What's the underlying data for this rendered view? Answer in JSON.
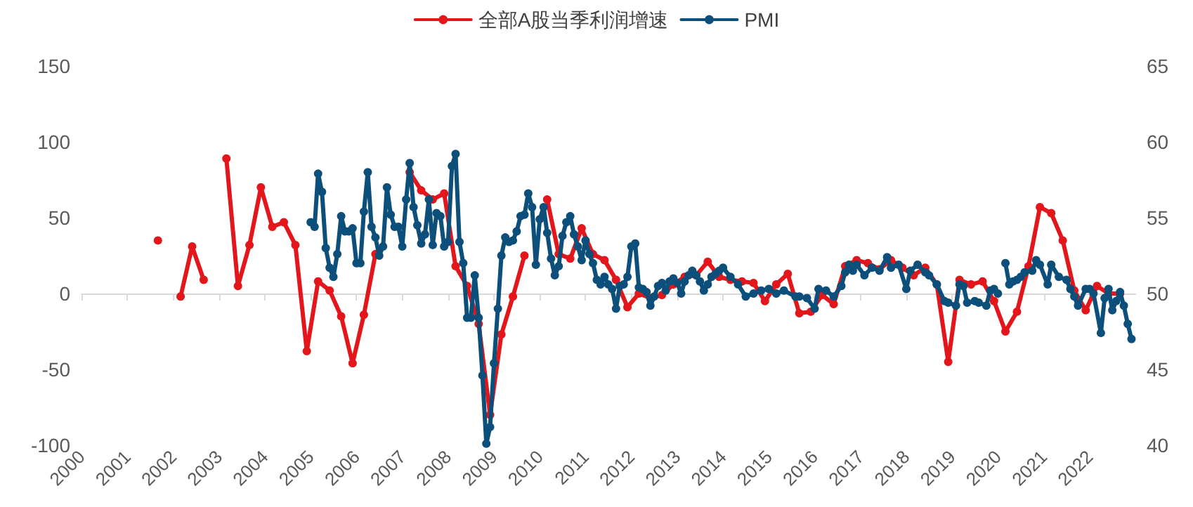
{
  "chart_data": {
    "type": "line",
    "legend": "top",
    "marker": "circle",
    "line_style": "solid",
    "xlim": [
      "2000",
      "2023"
    ],
    "xticks": [
      "2000",
      "2001",
      "2002",
      "2003",
      "2004",
      "2005",
      "2006",
      "2007",
      "2008",
      "2009",
      "2010",
      "2011",
      "2012",
      "2013",
      "2014",
      "2015",
      "2016",
      "2017",
      "2018",
      "2019",
      "2020",
      "2021",
      "2022"
    ],
    "ylim": [
      -100,
      150
    ],
    "yticks": [
      -100,
      -50,
      0,
      50,
      100,
      150
    ],
    "y2lim": [
      40,
      65
    ],
    "y2ticks": [
      40,
      45,
      50,
      55,
      60,
      65
    ],
    "series": [
      {
        "name": "全部A股当季利润增速",
        "color": "#e3161c",
        "x": [
          "2001-09",
          "2001-12",
          "2002-03",
          "2002-06",
          "2002-09",
          "2002-12",
          "2003-03",
          "2003-06",
          "2003-09",
          "2003-12",
          "2004-03",
          "2004-06",
          "2004-09",
          "2004-12",
          "2005-03",
          "2005-06",
          "2005-09",
          "2005-12",
          "2006-03",
          "2006-06",
          "2006-09",
          "2006-12",
          "2007-03",
          "2007-06",
          "2007-09",
          "2007-12",
          "2008-03",
          "2008-06",
          "2008-09",
          "2008-12",
          "2009-03",
          "2009-06",
          "2009-09",
          "2009-12",
          "2010-03",
          "2010-06",
          "2010-09",
          "2010-12",
          "2011-03",
          "2011-06",
          "2011-09",
          "2011-12",
          "2012-03",
          "2012-06",
          "2012-09",
          "2012-12",
          "2013-03",
          "2013-06",
          "2013-09",
          "2013-12",
          "2014-03",
          "2014-06",
          "2014-09",
          "2014-12",
          "2015-03",
          "2015-06",
          "2015-09",
          "2015-12",
          "2016-03",
          "2016-06",
          "2016-09",
          "2016-12",
          "2017-03",
          "2017-06",
          "2017-09",
          "2017-12",
          "2018-03",
          "2018-06",
          "2018-09",
          "2018-12",
          "2019-03",
          "2019-06",
          "2019-09",
          "2019-12",
          "2020-03",
          "2020-06",
          "2020-09",
          "2020-12",
          "2021-03",
          "2021-06",
          "2021-09",
          "2021-12",
          "2022-03",
          "2022-06",
          "2022-09"
        ],
        "values": [
          35,
          null,
          -2,
          31,
          9,
          null,
          89,
          5,
          32,
          70,
          44,
          47,
          32,
          -38,
          8,
          2,
          -15,
          -46,
          -14,
          26,
          null,
          null,
          80,
          68,
          62,
          66,
          18,
          5,
          -20,
          -80,
          -27,
          -2,
          25,
          null,
          62,
          26,
          23,
          43,
          26,
          22,
          9,
          -9,
          0,
          -3,
          -1,
          6,
          11,
          12,
          21,
          11,
          9,
          8,
          7,
          -5,
          6,
          13,
          -13,
          -12,
          -1,
          -7,
          18,
          22,
          20,
          16,
          22,
          17,
          12,
          17,
          6,
          -45,
          9,
          6,
          8,
          -5,
          -25,
          -12,
          18,
          57,
          53,
          35,
          2,
          -11,
          5,
          0,
          0
        ]
      },
      {
        "name": "PMI",
        "color": "#0d4f7b",
        "axis": "y2",
        "x": [
          "2005-01",
          "2005-02",
          "2005-03",
          "2005-04",
          "2005-05",
          "2005-06",
          "2005-07",
          "2005-08",
          "2005-09",
          "2005-10",
          "2005-11",
          "2005-12",
          "2006-01",
          "2006-02",
          "2006-03",
          "2006-04",
          "2006-05",
          "2006-06",
          "2006-07",
          "2006-08",
          "2006-09",
          "2006-10",
          "2006-11",
          "2006-12",
          "2007-01",
          "2007-02",
          "2007-03",
          "2007-04",
          "2007-05",
          "2007-06",
          "2007-07",
          "2007-08",
          "2007-09",
          "2007-10",
          "2007-11",
          "2007-12",
          "2008-01",
          "2008-02",
          "2008-03",
          "2008-04",
          "2008-05",
          "2008-06",
          "2008-07",
          "2008-08",
          "2008-09",
          "2008-10",
          "2008-11",
          "2008-12",
          "2009-01",
          "2009-02",
          "2009-03",
          "2009-04",
          "2009-05",
          "2009-06",
          "2009-07",
          "2009-08",
          "2009-09",
          "2009-10",
          "2009-11",
          "2009-12",
          "2010-01",
          "2010-02",
          "2010-03",
          "2010-04",
          "2010-05",
          "2010-06",
          "2010-07",
          "2010-08",
          "2010-09",
          "2010-10",
          "2010-11",
          "2010-12",
          "2011-01",
          "2011-02",
          "2011-03",
          "2011-04",
          "2011-05",
          "2011-06",
          "2011-07",
          "2011-08",
          "2011-09",
          "2011-10",
          "2011-11",
          "2011-12",
          "2012-01",
          "2012-02",
          "2012-03",
          "2012-04",
          "2012-05",
          "2012-06",
          "2012-07",
          "2012-08",
          "2012-09",
          "2012-10",
          "2012-11",
          "2012-12",
          "2013-01",
          "2013-02",
          "2013-03",
          "2013-04",
          "2013-05",
          "2013-06",
          "2013-07",
          "2013-08",
          "2013-09",
          "2013-10",
          "2013-11",
          "2013-12",
          "2014-01",
          "2014-03",
          "2014-05",
          "2014-07",
          "2014-09",
          "2014-11",
          "2015-01",
          "2015-03",
          "2015-05",
          "2015-08",
          "2015-09",
          "2015-11",
          "2016-01",
          "2016-02",
          "2016-04",
          "2016-06",
          "2016-08",
          "2016-09",
          "2016-10",
          "2016-11",
          "2016-12",
          "2017-02",
          "2017-04",
          "2017-06",
          "2017-08",
          "2017-09",
          "2017-11",
          "2018-01",
          "2018-02",
          "2018-04",
          "2018-06",
          "2018-07",
          "2018-09",
          "2018-11",
          "2018-12",
          "2019-02",
          "2019-03",
          "2019-04",
          "2019-05",
          "2019-07",
          "2019-08",
          "2019-10",
          "2019-11",
          "2019-12",
          "2020-01",
          "2020-02",
          "2020-03",
          "2020-04",
          "2020-05",
          "2020-06",
          "2020-07",
          "2020-08",
          "2020-10",
          "2020-11",
          "2020-12",
          "2021-02",
          "2021-03",
          "2021-05",
          "2021-07",
          "2021-08",
          "2021-09",
          "2021-10",
          "2021-12",
          "2022-01",
          "2022-02",
          "2022-04",
          "2022-05",
          "2022-06",
          "2022-07",
          "2022-08",
          "2022-09",
          "2022-10",
          "2022-11",
          "2022-12"
        ],
        "values": [
          54.7,
          54.4,
          57.9,
          56.7,
          53.0,
          51.7,
          51.1,
          52.6,
          55.1,
          54.1,
          54.1,
          54.3,
          52.0,
          52.0,
          55.4,
          58.0,
          54.4,
          53.7,
          52.5,
          53.1,
          57.0,
          55.2,
          54.4,
          54.4,
          53.1,
          56.2,
          58.6,
          55.7,
          54.5,
          53.3,
          53.9,
          56.2,
          53.2,
          55.3,
          55.1,
          53.1,
          53.4,
          58.4,
          59.2,
          53.4,
          52.0,
          48.4,
          48.4,
          51.2,
          48.4,
          44.6,
          40.1,
          41.2,
          45.4,
          49.0,
          52.5,
          53.7,
          53.4,
          53.5,
          54.1,
          55.1,
          55.2,
          56.6,
          55.7,
          51.9,
          54.9,
          55.7,
          54.0,
          52.3,
          51.2,
          51.8,
          53.8,
          54.7,
          55.1,
          53.9,
          53.1,
          52.2,
          53.5,
          52.6,
          52.0,
          50.9,
          50.6,
          51.1,
          50.6,
          50.3,
          49.0,
          50.5,
          50.6,
          51.1,
          53.1,
          53.3,
          50.4,
          50.3,
          50.1,
          49.2,
          49.8,
          50.5,
          50.7,
          50.2,
          50.8,
          51.0,
          50.7,
          50.0,
          50.8,
          51.2,
          51.5,
          51.2,
          50.8,
          50.2,
          50.6,
          51.1,
          51.3,
          51.5,
          51.7,
          51.1,
          50.6,
          49.8,
          50.0,
          50.2,
          50.3,
          50.0,
          50.2,
          49.8,
          49.8,
          49.7,
          49.0,
          50.3,
          50.2,
          49.8,
          50.5,
          51.4,
          51.9,
          51.5,
          51.9,
          51.2,
          51.7,
          51.5,
          52.4,
          51.7,
          51.9,
          50.3,
          51.5,
          51.9,
          51.4,
          51.2,
          50.6,
          49.5,
          49.4,
          49.2,
          50.6,
          50.5,
          49.4,
          49.5,
          49.4,
          49.2,
          50.2,
          50.3,
          50.0,
          null,
          52.0,
          50.6,
          50.8,
          50.9,
          51.1,
          51.4,
          51.5,
          52.2,
          51.9,
          50.6,
          51.9,
          51.1,
          50.9,
          50.3,
          49.8,
          49.2,
          50.3,
          50.3,
          50.0,
          47.4,
          49.7,
          50.3,
          48.9,
          49.5,
          50.1,
          49.2,
          48.0,
          47.0
        ]
      }
    ]
  }
}
